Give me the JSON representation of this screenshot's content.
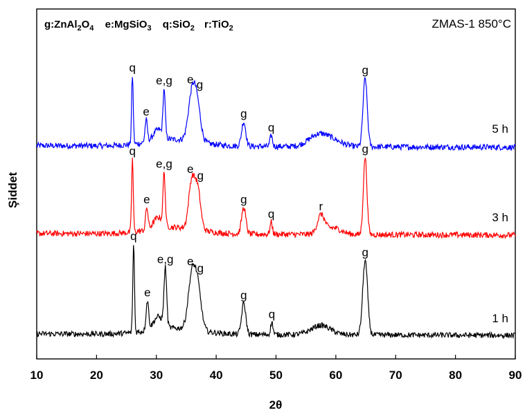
{
  "chart_data": {
    "type": "line",
    "title": "ZMAS-1 850°C",
    "xlabel": "2θ",
    "ylabel": "Şiddet",
    "xlim": [
      10,
      90
    ],
    "xticks": [
      "10",
      "20",
      "30",
      "40",
      "50",
      "60",
      "70",
      "80",
      "90"
    ],
    "y_ticks_shown": false,
    "grid": false,
    "legend": {
      "placement": "top-left",
      "entries": [
        {
          "key": "g",
          "formula": "ZnAl",
          "s1": "2",
          "mid": "O",
          "s2": "4"
        },
        {
          "key": "e",
          "formula": "MgSiO",
          "s1": "3",
          "mid": "",
          "s2": ""
        },
        {
          "key": "q",
          "formula": "SiO",
          "s1": "2",
          "mid": "",
          "s2": ""
        },
        {
          "key": "r",
          "formula": "TiO",
          "s1": "2",
          "mid": "",
          "s2": ""
        }
      ]
    },
    "series": [
      {
        "name": "5 h",
        "color": "#0000ff",
        "baseline": 0.14,
        "noise": 0.012,
        "peaks": [
          {
            "x": 26.0,
            "h": 0.62,
            "w": 0.14,
            "label": "q"
          },
          {
            "x": 28.3,
            "h": 0.2,
            "w": 0.2,
            "label": "e"
          },
          {
            "x": 30.3,
            "h": 0.1,
            "w": 0.8,
            "label": ""
          },
          {
            "x": 31.3,
            "h": 0.42,
            "w": 0.18,
            "label": "e,g"
          },
          {
            "x": 35.9,
            "h": 0.38,
            "w": 0.6,
            "label": "e"
          },
          {
            "x": 36.8,
            "h": 0.32,
            "w": 0.6,
            "label": "g"
          },
          {
            "x": 44.6,
            "h": 0.22,
            "w": 0.35,
            "label": "g"
          },
          {
            "x": 49.2,
            "h": 0.1,
            "w": 0.2,
            "label": "q"
          },
          {
            "x": 57.0,
            "h": 0.1,
            "w": 1.6,
            "label": ""
          },
          {
            "x": 59.5,
            "h": 0.05,
            "w": 1.6,
            "label": ""
          },
          {
            "x": 64.9,
            "h": 0.62,
            "w": 0.35,
            "label": "g"
          }
        ]
      },
      {
        "name": "3 h",
        "color": "#ff0000",
        "baseline": 0.14,
        "noise": 0.012,
        "peaks": [
          {
            "x": 26.0,
            "h": 0.66,
            "w": 0.14,
            "label": "q"
          },
          {
            "x": 28.4,
            "h": 0.2,
            "w": 0.2,
            "label": "e"
          },
          {
            "x": 30.3,
            "h": 0.1,
            "w": 0.8,
            "label": ""
          },
          {
            "x": 31.3,
            "h": 0.46,
            "w": 0.18,
            "label": "e,g"
          },
          {
            "x": 35.9,
            "h": 0.42,
            "w": 0.5,
            "label": "e"
          },
          {
            "x": 36.9,
            "h": 0.36,
            "w": 0.5,
            "label": "g"
          },
          {
            "x": 44.6,
            "h": 0.24,
            "w": 0.35,
            "label": "g"
          },
          {
            "x": 49.2,
            "h": 0.11,
            "w": 0.2,
            "label": "q"
          },
          {
            "x": 57.5,
            "h": 0.16,
            "w": 0.6,
            "label": "r"
          },
          {
            "x": 59.5,
            "h": 0.06,
            "w": 1.4,
            "label": ""
          },
          {
            "x": 64.9,
            "h": 0.7,
            "w": 0.3,
            "label": "g"
          }
        ]
      },
      {
        "name": "1 h",
        "color": "#000000",
        "baseline": 0.12,
        "noise": 0.012,
        "peaks": [
          {
            "x": 26.2,
            "h": 0.85,
            "w": 0.14,
            "label": "q"
          },
          {
            "x": 28.5,
            "h": 0.28,
            "w": 0.22,
            "label": "e"
          },
          {
            "x": 30.3,
            "h": 0.12,
            "w": 0.8,
            "label": ""
          },
          {
            "x": 31.5,
            "h": 0.55,
            "w": 0.22,
            "label": "e,g"
          },
          {
            "x": 35.9,
            "h": 0.48,
            "w": 0.6,
            "label": "e"
          },
          {
            "x": 36.9,
            "h": 0.4,
            "w": 0.6,
            "label": "g"
          },
          {
            "x": 44.6,
            "h": 0.3,
            "w": 0.35,
            "label": "g"
          },
          {
            "x": 49.3,
            "h": 0.12,
            "w": 0.2,
            "label": "q"
          },
          {
            "x": 57.5,
            "h": 0.09,
            "w": 1.6,
            "label": ""
          },
          {
            "x": 64.9,
            "h": 0.72,
            "w": 0.4,
            "label": "g"
          }
        ]
      }
    ]
  }
}
